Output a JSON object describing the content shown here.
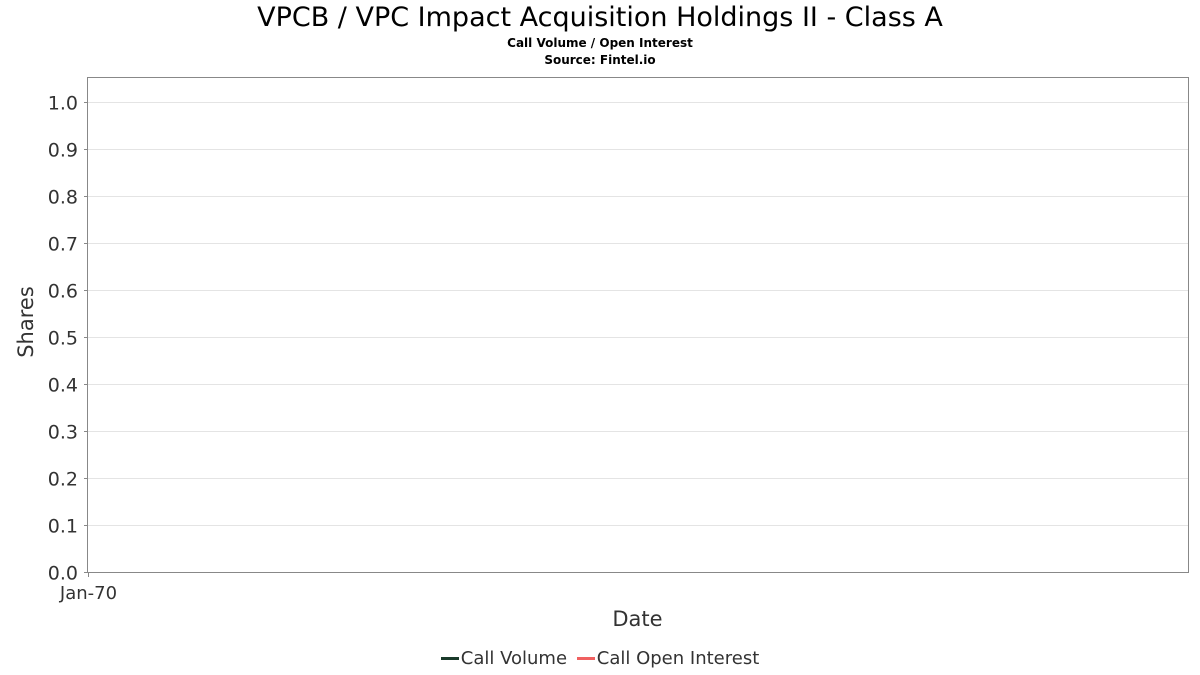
{
  "chart_data": {
    "type": "line",
    "title": "VPCB / VPC Impact Acquisition Holdings II - Class A",
    "subtitles": [
      "Call Volume / Open Interest",
      "Source: Fintel.io"
    ],
    "xlabel": "Date",
    "ylabel": "Shares",
    "x_ticks": [
      "Jan-70"
    ],
    "y_ticks": [
      "0.0",
      "0.1",
      "0.2",
      "0.3",
      "0.4",
      "0.5",
      "0.6",
      "0.7",
      "0.8",
      "0.9",
      "1.0"
    ],
    "ylim": [
      0,
      1.05
    ],
    "grid": true,
    "legend_position": "bottom",
    "series": [
      {
        "name": "Call Volume",
        "color": "#1a3a2a",
        "values": []
      },
      {
        "name": "Call Open Interest",
        "color": "#f06060",
        "values": []
      }
    ]
  }
}
